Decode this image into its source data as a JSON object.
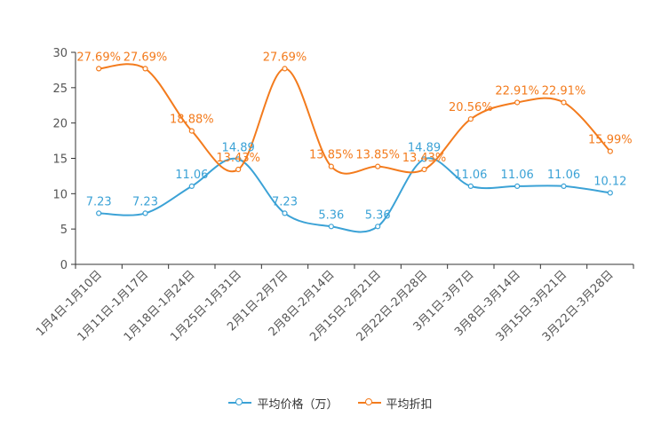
{
  "chart_data": {
    "type": "line",
    "categories": [
      "1月4日-1月10日",
      "1月11日-1月17日",
      "1月18日-1月24日",
      "1月25日-1月31日",
      "2月1日-2月7日",
      "2月8日-2月14日",
      "2月15日-2月21日",
      "2月22日-2月28日",
      "3月1日-3月7日",
      "3月8日-3月14日",
      "3月15日-3月21日",
      "3月22日-3月28日"
    ],
    "series": [
      {
        "name": "平均价格（万）",
        "color": "#3ba2d6",
        "values": [
          7.23,
          7.23,
          11.06,
          14.89,
          7.23,
          5.36,
          5.36,
          14.89,
          11.06,
          11.06,
          11.06,
          10.12
        ],
        "labels": [
          "7.23",
          "7.23",
          "11.06",
          "14.89",
          "7.23",
          "5.36",
          "5.36",
          "14.89",
          "11.06",
          "11.06",
          "11.06",
          "10.12"
        ]
      },
      {
        "name": "平均折扣",
        "color": "#f37b1d",
        "values": [
          27.69,
          27.69,
          18.88,
          13.43,
          27.69,
          13.85,
          13.85,
          13.43,
          20.56,
          22.91,
          22.91,
          15.99
        ],
        "labels": [
          "27.69%",
          "27.69%",
          "18.88%",
          "13.43%",
          "27.69%",
          "13.85%",
          "13.85%",
          "13.43%",
          "20.56%",
          "22.91%",
          "22.91%",
          "15.99%"
        ]
      }
    ],
    "yticks": [
      "0",
      "5",
      "10",
      "15",
      "20",
      "25",
      "30"
    ],
    "ylim": [
      0,
      30
    ],
    "title": "",
    "xlabel": "",
    "ylabel": "",
    "legend_position": "bottom-center",
    "grid": false
  }
}
